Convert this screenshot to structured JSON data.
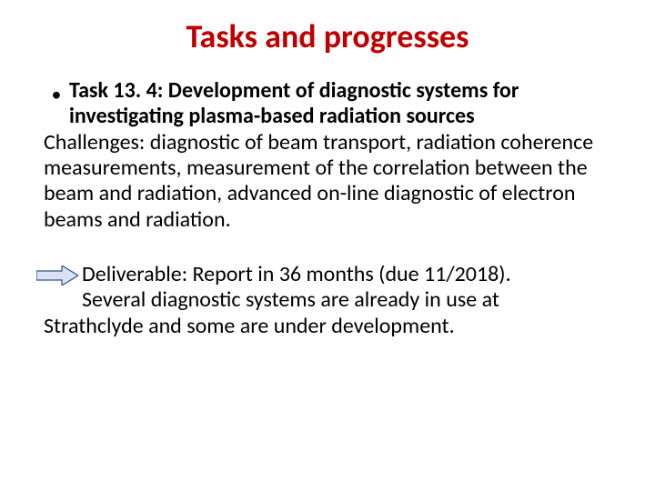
{
  "title": {
    "text": "Tasks and progresses",
    "color": "#c00000",
    "fontsize": 36
  },
  "body_fontsize": 24,
  "body_color": "#000000",
  "bullet": {
    "task_label": "Task 13. 4: Development of diagnostic systems for investigating plasma-based radiation sources"
  },
  "challenges": "Challenges: diagnostic of beam transport, radiation coherence measurements, measurement of the correlation between the beam and radiation, advanced on-line diagnostic of electron beams and radiation.",
  "deliverable_line1": "Deliverable: Report in 36 months (due 11/2018).",
  "deliverable_line2": "Several diagnostic systems are already in use at",
  "deliverable_line3": "Strathclyde and some are under development.",
  "arrow": {
    "fill": "#d9e1f2",
    "stroke": "#2f528f",
    "width": 46,
    "height": 22
  }
}
